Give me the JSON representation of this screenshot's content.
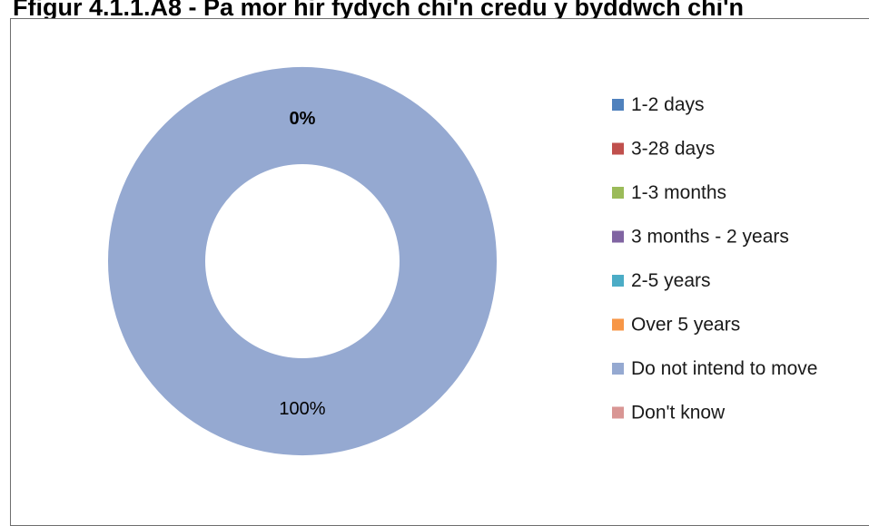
{
  "chart_data": {
    "type": "pie",
    "title": "Ffigur 4.1.1.A8 - Pa mor hir fydych chi'n credu y byddwch chi'n",
    "donut": true,
    "categories": [
      "1-2 days",
      "3-28 days",
      "1-3 months",
      "3 months - 2 years",
      "2-5 years",
      "Over 5 years",
      "Do not intend to move",
      "Don't know"
    ],
    "values": [
      0,
      0,
      0,
      0,
      0,
      0,
      100,
      0
    ],
    "colors": [
      "#4F81BD",
      "#C0504D",
      "#9BBB59",
      "#8064A2",
      "#4BACC6",
      "#F79646",
      "#95A9D1",
      "#D99694"
    ],
    "data_labels": [
      {
        "category": "1-2 days",
        "text": "0%"
      },
      {
        "category": "Do not intend to move",
        "text": "100%"
      }
    ],
    "legend_position": "right"
  }
}
